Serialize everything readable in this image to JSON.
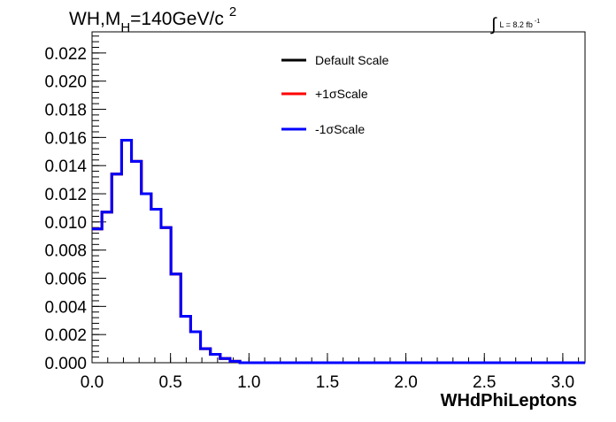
{
  "chart_data": {
    "type": "line",
    "title": {
      "prefix": "WH,M",
      "subscript": "H",
      "main": "=140GeV/c",
      "superscript": "2"
    },
    "luminosity": {
      "symbol": "∫",
      "label": "L = 8.2 fb",
      "superscript": "-1"
    },
    "xlabel": "WHdPhiLeptons",
    "ylabel": "",
    "xlim": [
      0.0,
      3.1416
    ],
    "ylim": [
      0.0,
      0.0235
    ],
    "x_ticks": [
      0.0,
      0.5,
      1.0,
      1.5,
      2.0,
      2.5,
      3.0
    ],
    "x_tick_labels": [
      "0.0",
      "0.5",
      "1.0",
      "1.5",
      "2.0",
      "2.5",
      "3.0"
    ],
    "y_ticks": [
      0.0,
      0.002,
      0.004,
      0.006,
      0.008,
      0.01,
      0.012,
      0.014,
      0.016,
      0.018,
      0.02,
      0.022
    ],
    "y_tick_labels": [
      "0.000",
      "0.002",
      "0.004",
      "0.006",
      "0.008",
      "0.010",
      "0.012",
      "0.014",
      "0.016",
      "0.018",
      "0.020",
      "0.022"
    ],
    "grid": false,
    "legend_position": "top-center",
    "bin_edges": [
      0.0,
      0.0628,
      0.1257,
      0.1885,
      0.2513,
      0.3142,
      0.377,
      0.4398,
      0.5027,
      0.5655,
      0.6283,
      0.6912,
      0.754,
      0.8168,
      0.8796,
      0.9425,
      1.0053,
      1.0681,
      1.131,
      1.1938,
      1.2566,
      1.3195,
      1.3823,
      1.4451,
      1.508,
      1.5708,
      1.6336,
      1.6965,
      1.7593,
      1.8221,
      1.885,
      1.9478,
      2.0106,
      2.0735,
      2.1363,
      2.1991,
      2.2619,
      2.3248,
      2.3876,
      2.4504,
      2.5133,
      2.5761,
      2.6389,
      2.7018,
      2.7646,
      2.8274,
      2.8903,
      2.9531,
      3.0159,
      3.0788,
      3.1416
    ],
    "series": [
      {
        "name": "Default Scale",
        "color": "#000000",
        "values": [
          0.0095,
          0.0107,
          0.0134,
          0.0158,
          0.0143,
          0.012,
          0.0109,
          0.0096,
          0.0063,
          0.0033,
          0.0022,
          0.001,
          0.0006,
          0.0003,
          0.0001,
          0.0,
          0.0,
          0.0,
          0.0,
          0.0,
          0.0,
          0.0,
          0.0,
          0.0,
          0.0,
          0.0,
          0.0,
          0.0,
          0.0,
          0.0,
          0.0,
          0.0,
          0.0,
          0.0,
          0.0,
          0.0,
          0.0,
          0.0,
          0.0,
          0.0,
          0.0,
          0.0,
          0.0,
          0.0,
          0.0,
          0.0,
          0.0,
          0.0,
          0.0,
          0.0
        ]
      },
      {
        "name": "+1σScale",
        "color": "#ff0000",
        "values": [
          0.0095,
          0.0107,
          0.0134,
          0.0158,
          0.0143,
          0.012,
          0.0109,
          0.0096,
          0.0063,
          0.0033,
          0.0022,
          0.001,
          0.0006,
          0.0003,
          0.0001,
          0.0,
          0.0,
          0.0,
          0.0,
          0.0,
          0.0,
          0.0,
          0.0,
          0.0,
          0.0,
          0.0,
          0.0,
          0.0,
          0.0,
          0.0,
          0.0,
          0.0,
          0.0,
          0.0,
          0.0,
          0.0,
          0.0,
          0.0,
          0.0,
          0.0,
          0.0,
          0.0,
          0.0,
          0.0,
          0.0,
          0.0,
          0.0,
          0.0,
          0.0,
          0.0
        ]
      },
      {
        "name": "-1σScale",
        "color": "#0000ff",
        "values": [
          0.0095,
          0.0107,
          0.0134,
          0.0158,
          0.0143,
          0.012,
          0.0109,
          0.0096,
          0.0063,
          0.0033,
          0.0022,
          0.001,
          0.0006,
          0.0003,
          0.0001,
          0.0,
          0.0,
          0.0,
          0.0,
          0.0,
          0.0,
          0.0,
          0.0,
          0.0,
          0.0,
          0.0,
          0.0,
          0.0,
          0.0,
          0.0,
          0.0,
          0.0,
          0.0,
          0.0,
          0.0,
          0.0,
          0.0,
          0.0,
          0.0,
          0.0,
          0.0,
          0.0,
          0.0,
          0.0,
          0.0,
          0.0,
          0.0,
          0.0,
          0.0,
          0.0
        ]
      }
    ]
  }
}
